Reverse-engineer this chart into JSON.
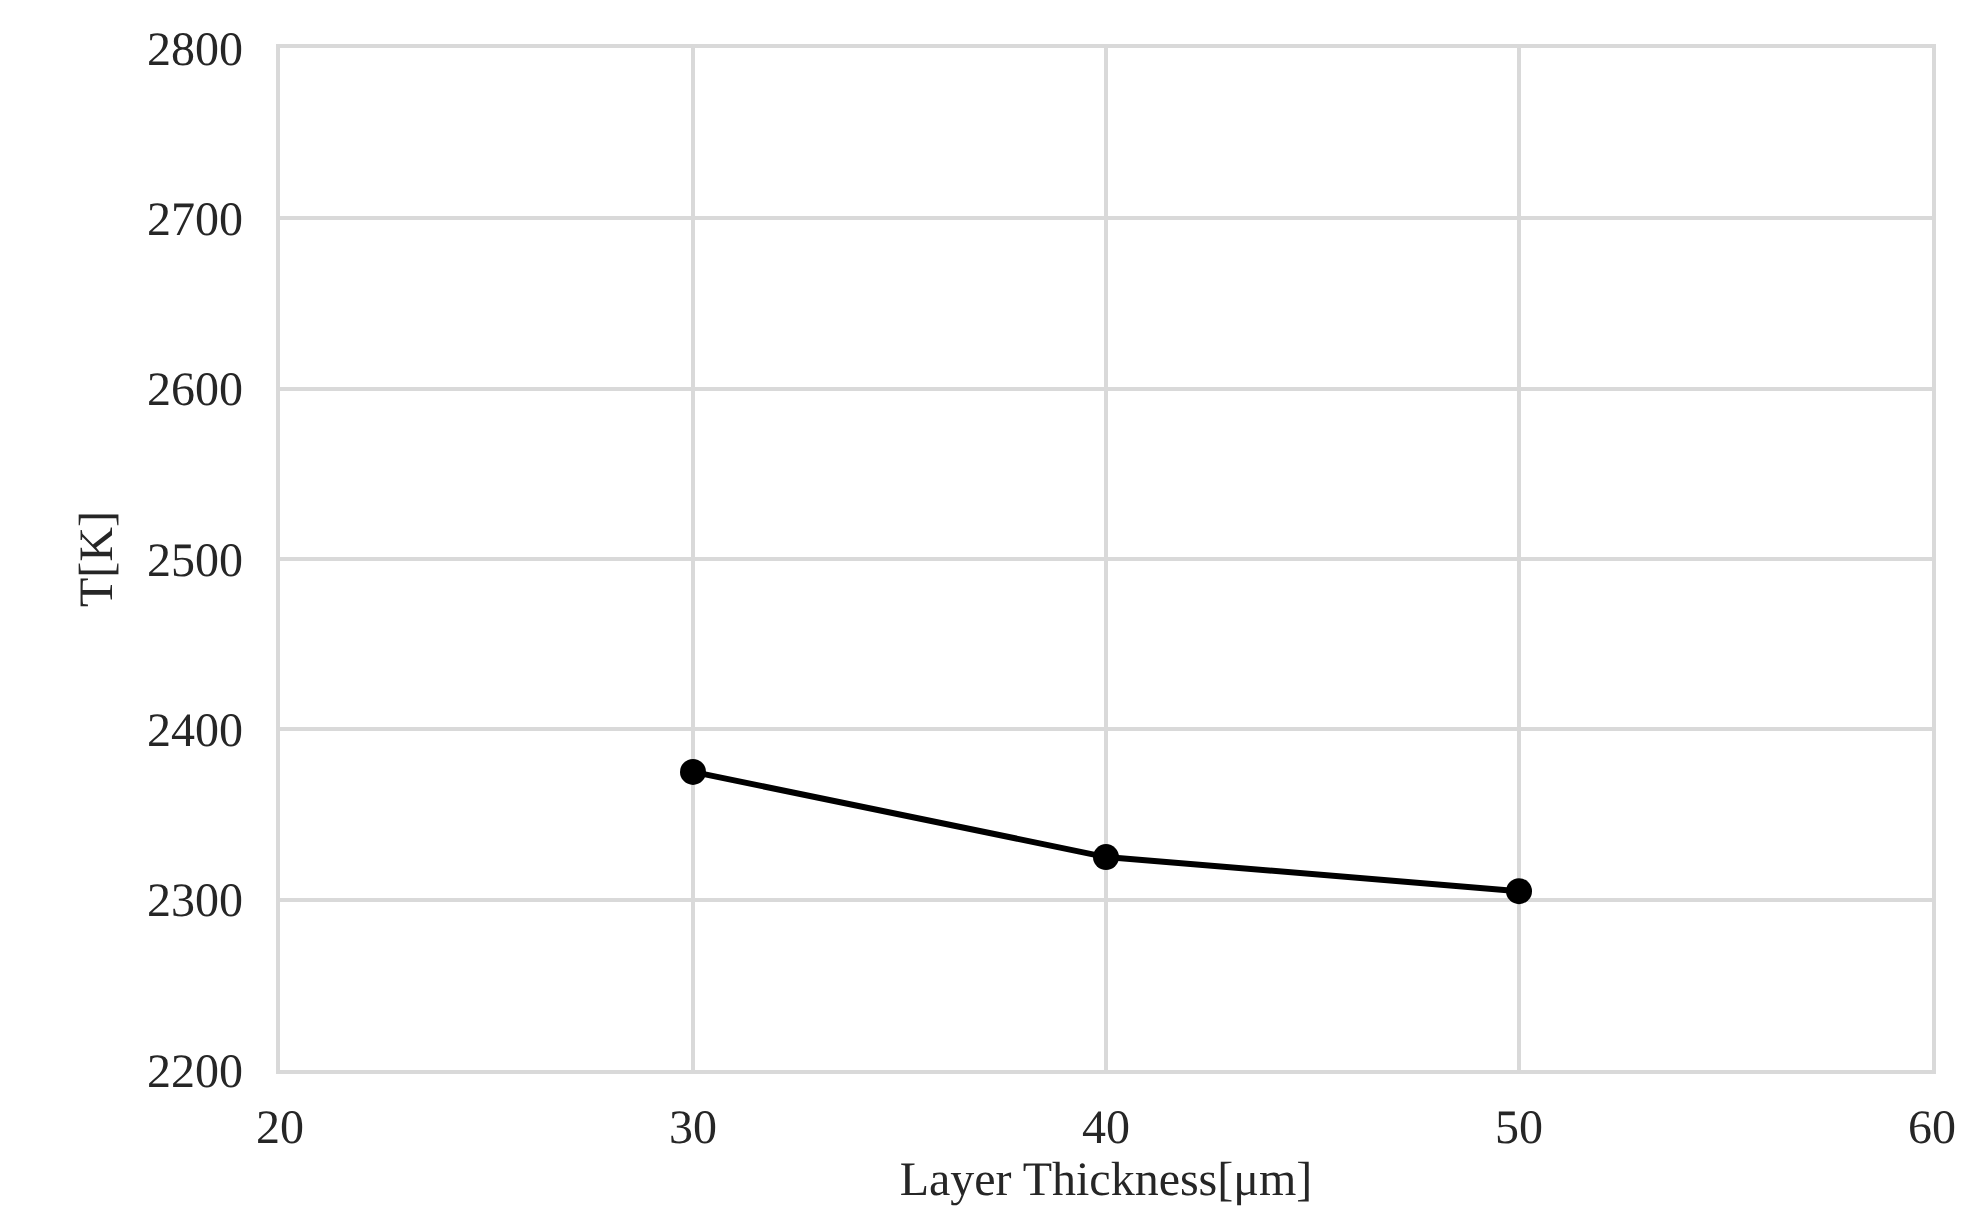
{
  "chart_data": {
    "type": "line",
    "xlabel": "Layer Thickness[μm]",
    "ylabel": "T[K]",
    "x": [
      30,
      40,
      50
    ],
    "series": [
      {
        "color": "#000000",
        "values": [
          2375,
          2325,
          2305
        ]
      }
    ],
    "xlim": [
      20,
      60
    ],
    "xticks": [
      20,
      30,
      40,
      50,
      60
    ],
    "ylim": [
      2200,
      2800
    ],
    "yticks": [
      2200,
      2300,
      2400,
      2500,
      2600,
      2700,
      2800
    ],
    "grid": true,
    "marker": "circle",
    "line_style": "solid"
  }
}
